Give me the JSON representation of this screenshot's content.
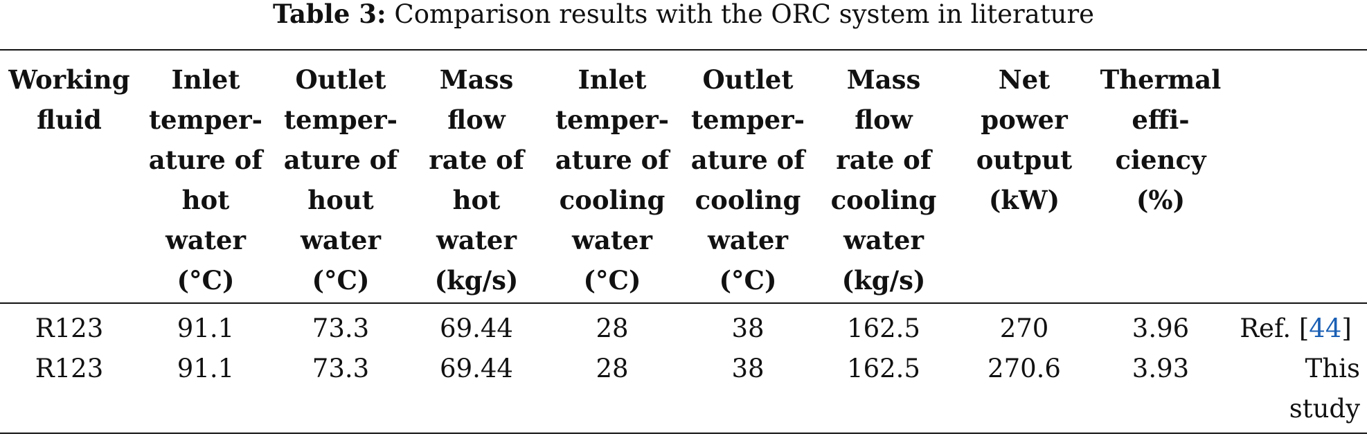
{
  "caption": {
    "label": "Table 3:",
    "text": " Comparison results with the ORC system in literature"
  },
  "headers": [
    [
      "Working",
      "fluid"
    ],
    [
      "Inlet",
      "temper-",
      "ature of",
      "hot",
      "water",
      "(°C)"
    ],
    [
      "Outlet",
      "temper-",
      "ature of",
      "hout",
      "water",
      "(°C)"
    ],
    [
      "Mass",
      "flow",
      "rate of",
      "hot",
      "water",
      "(kg/s)"
    ],
    [
      "Inlet",
      "temper-",
      "ature of",
      "cooling",
      "water",
      "(°C)"
    ],
    [
      "Outlet",
      "temper-",
      "ature of",
      "cooling",
      "water",
      "(°C)"
    ],
    [
      "Mass",
      "flow",
      "rate of",
      "cooling",
      "water",
      "(kg/s)"
    ],
    [
      "Net",
      "power",
      "output",
      "(kW)"
    ],
    [
      "Thermal",
      "effi-",
      "ciency",
      "(%)"
    ]
  ],
  "rows": [
    {
      "cells": [
        "R123",
        "91.1",
        "73.3",
        "69.44",
        "28",
        "38",
        "162.5",
        "270",
        "3.96"
      ],
      "source": {
        "prefix": "Ref. [",
        "ref": "44",
        "suffix": "]"
      }
    },
    {
      "cells": [
        "R123",
        "91.1",
        "73.3",
        "69.44",
        "28",
        "38",
        "162.5",
        "270.6",
        "3.93"
      ],
      "source_lines": [
        "This",
        "study"
      ]
    }
  ]
}
